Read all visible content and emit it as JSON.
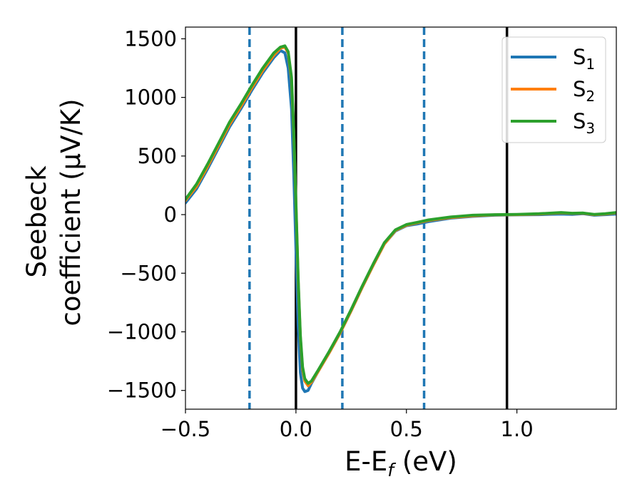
{
  "chart_data": {
    "type": "line",
    "xlabel": {
      "main": "E-E",
      "sub": "f",
      "tail": " (eV)"
    },
    "ylabel": {
      "line1": "Seebeck",
      "line2": "coefficient  (μV/K)"
    },
    "xlim": [
      -0.5,
      1.45
    ],
    "ylim": [
      -1660,
      1600
    ],
    "xticks": [
      -0.5,
      0.0,
      0.5,
      1.0
    ],
    "xtick_labels": [
      "−0.5",
      "0.0",
      "0.5",
      "1.0"
    ],
    "yticks": [
      1500,
      1000,
      500,
      0,
      -500,
      -1000,
      -1500
    ],
    "ytick_labels": [
      "1500",
      "1000",
      "500",
      "0",
      "−500",
      "−1000",
      "−1500"
    ],
    "vlines_solid": [
      0.0,
      0.955
    ],
    "vlines_dashed": [
      -0.21,
      0.21,
      0.58
    ],
    "vline_colors": {
      "solid": "#000000",
      "dashed": "#1f77b4"
    },
    "grid": false,
    "legend": {
      "placement": "top-right"
    },
    "series": [
      {
        "name": {
          "main": "S",
          "sub": "1"
        },
        "color": "#1f77b4",
        "x": [
          -0.5,
          -0.45,
          -0.4,
          -0.35,
          -0.3,
          -0.25,
          -0.2,
          -0.15,
          -0.1,
          -0.07,
          -0.05,
          -0.035,
          -0.02,
          -0.01,
          0.0,
          0.01,
          0.02,
          0.03,
          0.04,
          0.055,
          0.07,
          0.1,
          0.15,
          0.2,
          0.25,
          0.3,
          0.35,
          0.4,
          0.45,
          0.5,
          0.55,
          0.6,
          0.7,
          0.8,
          0.9,
          1.0,
          1.1,
          1.2,
          1.25,
          1.3,
          1.35,
          1.4,
          1.45
        ],
        "y": [
          100,
          220,
          390,
          570,
          750,
          900,
          1060,
          1210,
          1340,
          1400,
          1380,
          1250,
          900,
          350,
          -300,
          -950,
          -1350,
          -1480,
          -1510,
          -1500,
          -1440,
          -1340,
          -1180,
          -1010,
          -820,
          -620,
          -430,
          -250,
          -140,
          -95,
          -80,
          -60,
          -30,
          -15,
          -5,
          -2,
          0,
          5,
          2,
          8,
          -5,
          0,
          5
        ]
      },
      {
        "name": {
          "main": "S",
          "sub": "2"
        },
        "color": "#ff7f0e",
        "x": [
          -0.5,
          -0.45,
          -0.4,
          -0.35,
          -0.3,
          -0.25,
          -0.2,
          -0.15,
          -0.1,
          -0.07,
          -0.05,
          -0.035,
          -0.02,
          -0.01,
          0.0,
          0.01,
          0.02,
          0.03,
          0.04,
          0.055,
          0.07,
          0.1,
          0.15,
          0.2,
          0.25,
          0.3,
          0.35,
          0.4,
          0.45,
          0.5,
          0.55,
          0.6,
          0.7,
          0.8,
          0.9,
          1.0,
          1.1,
          1.2,
          1.25,
          1.3,
          1.35,
          1.4,
          1.45
        ],
        "y": [
          120,
          240,
          410,
          590,
          770,
          920,
          1080,
          1230,
          1360,
          1420,
          1430,
          1380,
          1150,
          700,
          80,
          -560,
          -1050,
          -1320,
          -1420,
          -1460,
          -1430,
          -1340,
          -1180,
          -1010,
          -820,
          -620,
          -430,
          -250,
          -135,
          -90,
          -70,
          -50,
          -25,
          -10,
          -2,
          0,
          5,
          15,
          10,
          12,
          0,
          5,
          15
        ]
      },
      {
        "name": {
          "main": "S",
          "sub": "3"
        },
        "color": "#2ca02c",
        "x": [
          -0.5,
          -0.45,
          -0.4,
          -0.35,
          -0.3,
          -0.25,
          -0.2,
          -0.15,
          -0.1,
          -0.07,
          -0.05,
          -0.035,
          -0.02,
          -0.01,
          0.0,
          0.01,
          0.02,
          0.03,
          0.04,
          0.055,
          0.07,
          0.1,
          0.15,
          0.2,
          0.25,
          0.3,
          0.35,
          0.4,
          0.45,
          0.5,
          0.55,
          0.6,
          0.7,
          0.8,
          0.9,
          1.0,
          1.1,
          1.2,
          1.25,
          1.3,
          1.35,
          1.4,
          1.45
        ],
        "y": [
          130,
          260,
          430,
          610,
          790,
          940,
          1100,
          1250,
          1380,
          1430,
          1440,
          1390,
          1170,
          720,
          100,
          -540,
          -1030,
          -1300,
          -1400,
          -1440,
          -1420,
          -1330,
          -1170,
          -1000,
          -810,
          -610,
          -420,
          -240,
          -130,
          -85,
          -65,
          -45,
          -20,
          -5,
          0,
          2,
          8,
          18,
          12,
          14,
          2,
          8,
          18
        ]
      }
    ]
  }
}
